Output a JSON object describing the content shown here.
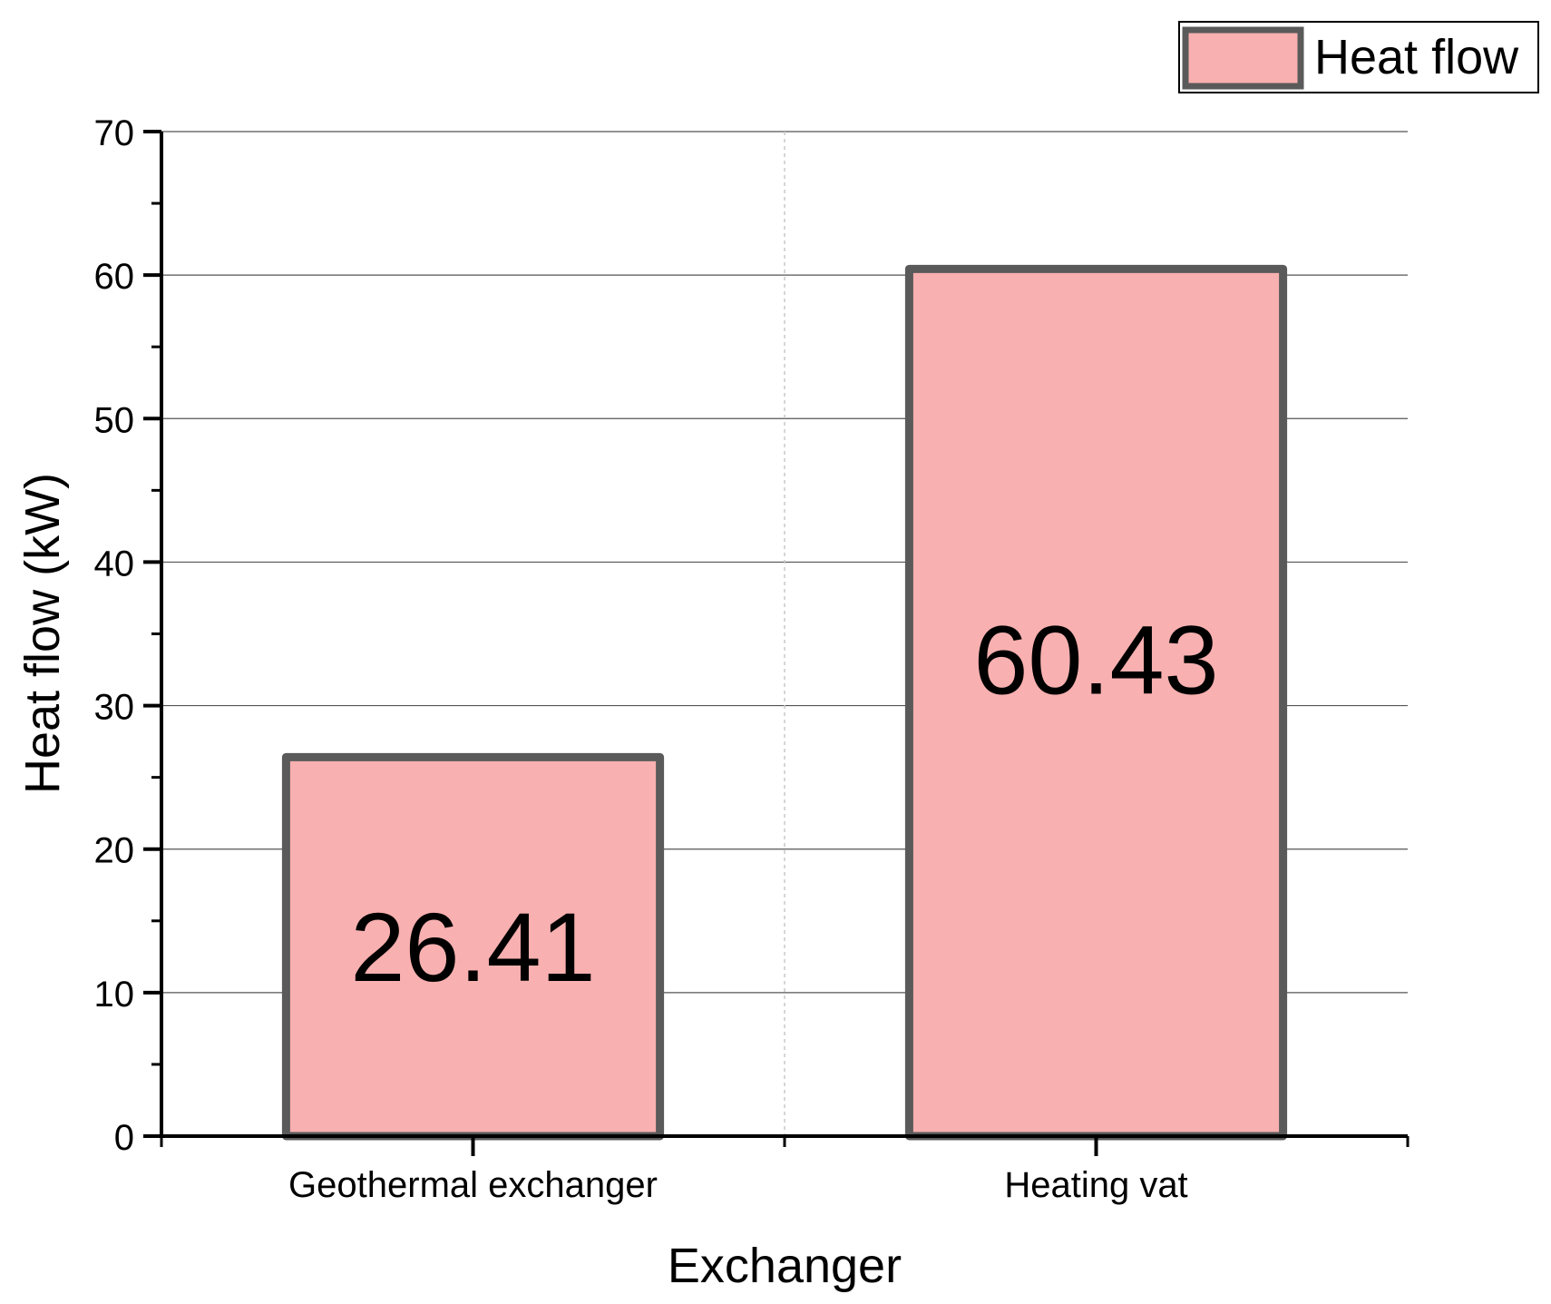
{
  "chart_data": {
    "type": "bar",
    "xlabel": "Exchanger",
    "ylabel": "Heat flow (kW)",
    "categories": [
      "Geothermal exchanger",
      "Heating vat"
    ],
    "series": [
      {
        "name": "Heat flow",
        "values": [
          26.41,
          60.43
        ],
        "data_labels": [
          "26.41",
          "60.43"
        ],
        "fill_color": "#f9b0b0",
        "edge_color": "#5a5a5a"
      }
    ],
    "ylim": [
      0,
      70
    ],
    "yticks": [
      0,
      10,
      20,
      30,
      40,
      50,
      60,
      70
    ],
    "ytick_labels": [
      "0",
      "10",
      "20",
      "30",
      "40",
      "50",
      "60",
      "70"
    ],
    "grid": "horizontal major",
    "legend": {
      "position": "top-right",
      "entries": [
        "Heat flow"
      ]
    }
  }
}
